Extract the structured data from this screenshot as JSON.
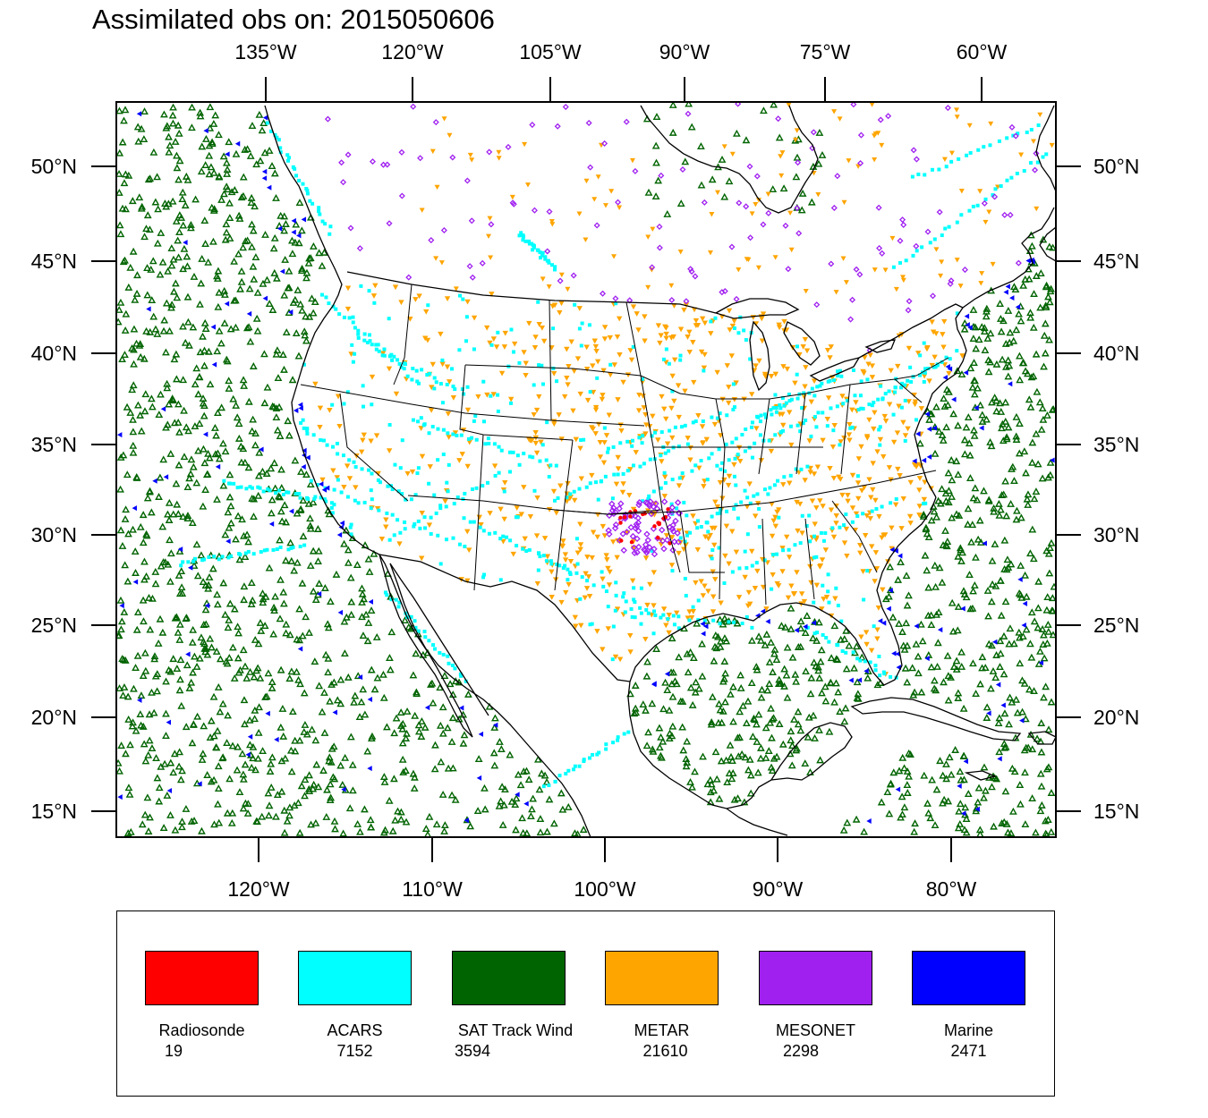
{
  "title": "Assimilated obs on: 2015050606",
  "map": {
    "top_lon_labels": [
      "135°W",
      "120°W",
      "105°W",
      "90°W",
      "75°W",
      "60°W"
    ],
    "bottom_lon_labels": [
      "120°W",
      "110°W",
      "100°W",
      "90°W",
      "80°W"
    ],
    "left_lat_labels": [
      "50°N",
      "45°N",
      "40°N",
      "35°N",
      "30°N",
      "25°N",
      "20°N",
      "15°N"
    ],
    "right_lat_labels": [
      "50°N",
      "45°N",
      "40°N",
      "35°N",
      "30°N",
      "25°N",
      "20°N",
      "15°N"
    ]
  },
  "legend": {
    "items": [
      {
        "label": "Radiosonde",
        "count": "19",
        "color": "#ff0000",
        "symbol": "circle"
      },
      {
        "label": "ACARS",
        "count": "7152",
        "color": "#00ffff",
        "symbol": "square"
      },
      {
        "label": "SAT Track Wind",
        "count": "3594",
        "color": "#006400",
        "symbol": "triangle-up"
      },
      {
        "label": "METAR",
        "count": "21610",
        "color": "#ffa500",
        "symbol": "triangle-down"
      },
      {
        "label": "MESONET",
        "count": "2298",
        "color": "#a020f0",
        "symbol": "diamond"
      },
      {
        "label": "Marine",
        "count": "2471",
        "color": "#0000ff",
        "symbol": "triangle-left"
      }
    ]
  }
}
